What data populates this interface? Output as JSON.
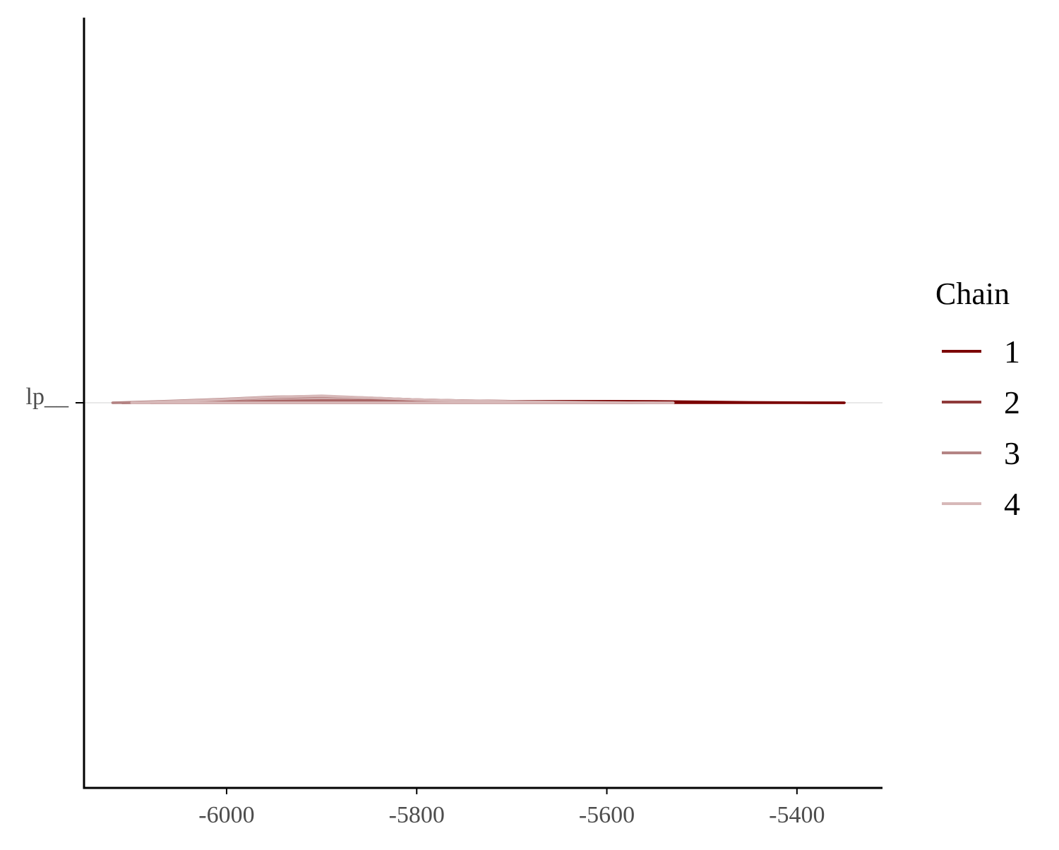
{
  "chart_data": {
    "type": "area",
    "title": "",
    "xlabel": "",
    "ylabel": "",
    "xlim": [
      -6150,
      -5310
    ],
    "x_ticks": [
      -6000,
      -5800,
      -5600,
      -5400
    ],
    "x_tick_labels": [
      "-6000",
      "-5800",
      "-5600",
      "-5400"
    ],
    "y_categories": [
      "lp__"
    ],
    "y_tick_labels": [
      "lp__"
    ],
    "grid": false,
    "legend": {
      "title": "Chain",
      "placement": "right",
      "entries": [
        "1",
        "2",
        "3",
        "4"
      ]
    },
    "series": [
      {
        "name": "1",
        "color": "#7b0000",
        "x": [
          -6080,
          -6000,
          -5950,
          -5900,
          -5850,
          -5800,
          -5750,
          -5700,
          -5650,
          -5600,
          -5550,
          -5500,
          -5450,
          -5400,
          -5350
        ],
        "y": [
          0.0,
          0.12,
          0.25,
          0.33,
          0.32,
          0.28,
          0.24,
          0.22,
          0.22,
          0.22,
          0.2,
          0.14,
          0.06,
          0.02,
          0.0
        ]
      },
      {
        "name": "2",
        "color": "#8f3a3a",
        "x": [
          -6110,
          -6050,
          -6000,
          -5950,
          -5900,
          -5850,
          -5800,
          -5750,
          -5700,
          -5650,
          -5600,
          -5560
        ],
        "y": [
          0.0,
          0.2,
          0.45,
          0.75,
          0.9,
          0.7,
          0.45,
          0.3,
          0.22,
          0.15,
          0.06,
          0.0
        ]
      },
      {
        "name": "3",
        "color": "#b48484",
        "x": [
          -6120,
          -6060,
          -6000,
          -5950,
          -5900,
          -5850,
          -5800,
          -5750,
          -5700,
          -5650,
          -5600,
          -5550
        ],
        "y": [
          0.0,
          0.25,
          0.55,
          0.85,
          0.95,
          0.7,
          0.45,
          0.3,
          0.2,
          0.12,
          0.05,
          0.0
        ]
      },
      {
        "name": "4",
        "color": "#d7b8b8",
        "x": [
          -6100,
          -6050,
          -6000,
          -5950,
          -5900,
          -5850,
          -5800,
          -5750,
          -5700,
          -5650,
          -5600,
          -5530
        ],
        "y": [
          0.0,
          0.22,
          0.5,
          0.8,
          1.0,
          0.72,
          0.45,
          0.28,
          0.18,
          0.1,
          0.04,
          0.0
        ]
      }
    ]
  }
}
